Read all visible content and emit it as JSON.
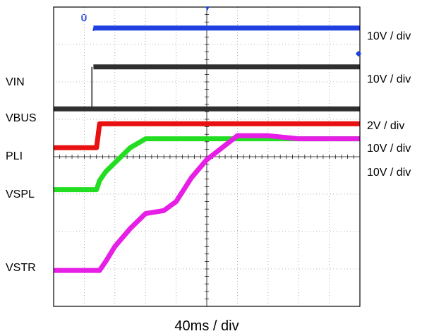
{
  "title": "",
  "chart_data": {
    "type": "line",
    "xlabel": "40ms / div",
    "ylabel": "",
    "grid": true,
    "x": [
      0,
      0.5,
      1.0,
      1.2,
      1.3,
      1.4,
      1.5,
      1.7,
      2.0,
      2.5,
      3.0,
      3.6,
      4.0,
      4.5,
      5.0,
      6.0,
      7.0,
      8.0,
      9.0,
      10.0
    ],
    "series": [
      {
        "color": "#1f3fe0",
        "values": [
          null,
          null,
          null,
          null,
          9.3,
          9.3,
          9.3,
          9.3,
          9.3,
          9.3,
          9.3,
          9.3,
          9.3,
          9.3,
          9.3,
          9.3,
          9.3,
          9.3,
          9.3,
          9.3
        ]
      },
      {
        "name": "VIN",
        "color": "#2f2f2f",
        "values": [
          null,
          null,
          null,
          null,
          8.0,
          8.0,
          8.0,
          8.0,
          8.0,
          8.0,
          8.0,
          8.0,
          8.0,
          8.0,
          8.0,
          8.0,
          8.0,
          8.0,
          8.0,
          8.0
        ]
      },
      {
        "name": "VBUS",
        "color": "#2f2f2f",
        "values": [
          6.6,
          6.6,
          6.6,
          6.6,
          6.6,
          6.6,
          6.6,
          6.6,
          6.6,
          6.6,
          6.6,
          6.6,
          6.6,
          6.6,
          6.6,
          6.6,
          6.6,
          6.6,
          6.6,
          6.6
        ]
      },
      {
        "name": "PLI",
        "color": "#e81010",
        "values": [
          5.3,
          5.3,
          5.3,
          5.3,
          5.3,
          5.3,
          6.1,
          6.1,
          6.1,
          6.1,
          6.1,
          6.1,
          6.1,
          6.1,
          6.1,
          6.1,
          6.1,
          6.1,
          6.1,
          6.1
        ]
      },
      {
        "name": "VSPL",
        "color": "#22dd22",
        "values": [
          3.9,
          3.9,
          3.9,
          3.9,
          3.9,
          3.9,
          4.2,
          4.5,
          4.8,
          5.3,
          5.6,
          5.6,
          5.6,
          5.6,
          5.6,
          5.6,
          5.6,
          5.6,
          5.6,
          5.6
        ]
      },
      {
        "name": "VSTR",
        "color": "#e61ee6",
        "values": [
          1.2,
          1.2,
          1.2,
          1.2,
          1.2,
          1.2,
          1.2,
          1.5,
          2.0,
          2.6,
          3.1,
          3.2,
          3.5,
          4.3,
          4.9,
          5.7,
          5.7,
          5.6,
          5.6,
          5.6
        ]
      }
    ],
    "xlim": [
      0,
      10
    ],
    "ylim": [
      0,
      10
    ],
    "left_labels": [
      "VIN",
      "VBUS",
      "PLI",
      "VSPL",
      "VSTR"
    ],
    "right_labels": [
      "10V / div",
      "10V / div",
      "2V / div",
      "10V / div",
      "10V / div"
    ]
  }
}
